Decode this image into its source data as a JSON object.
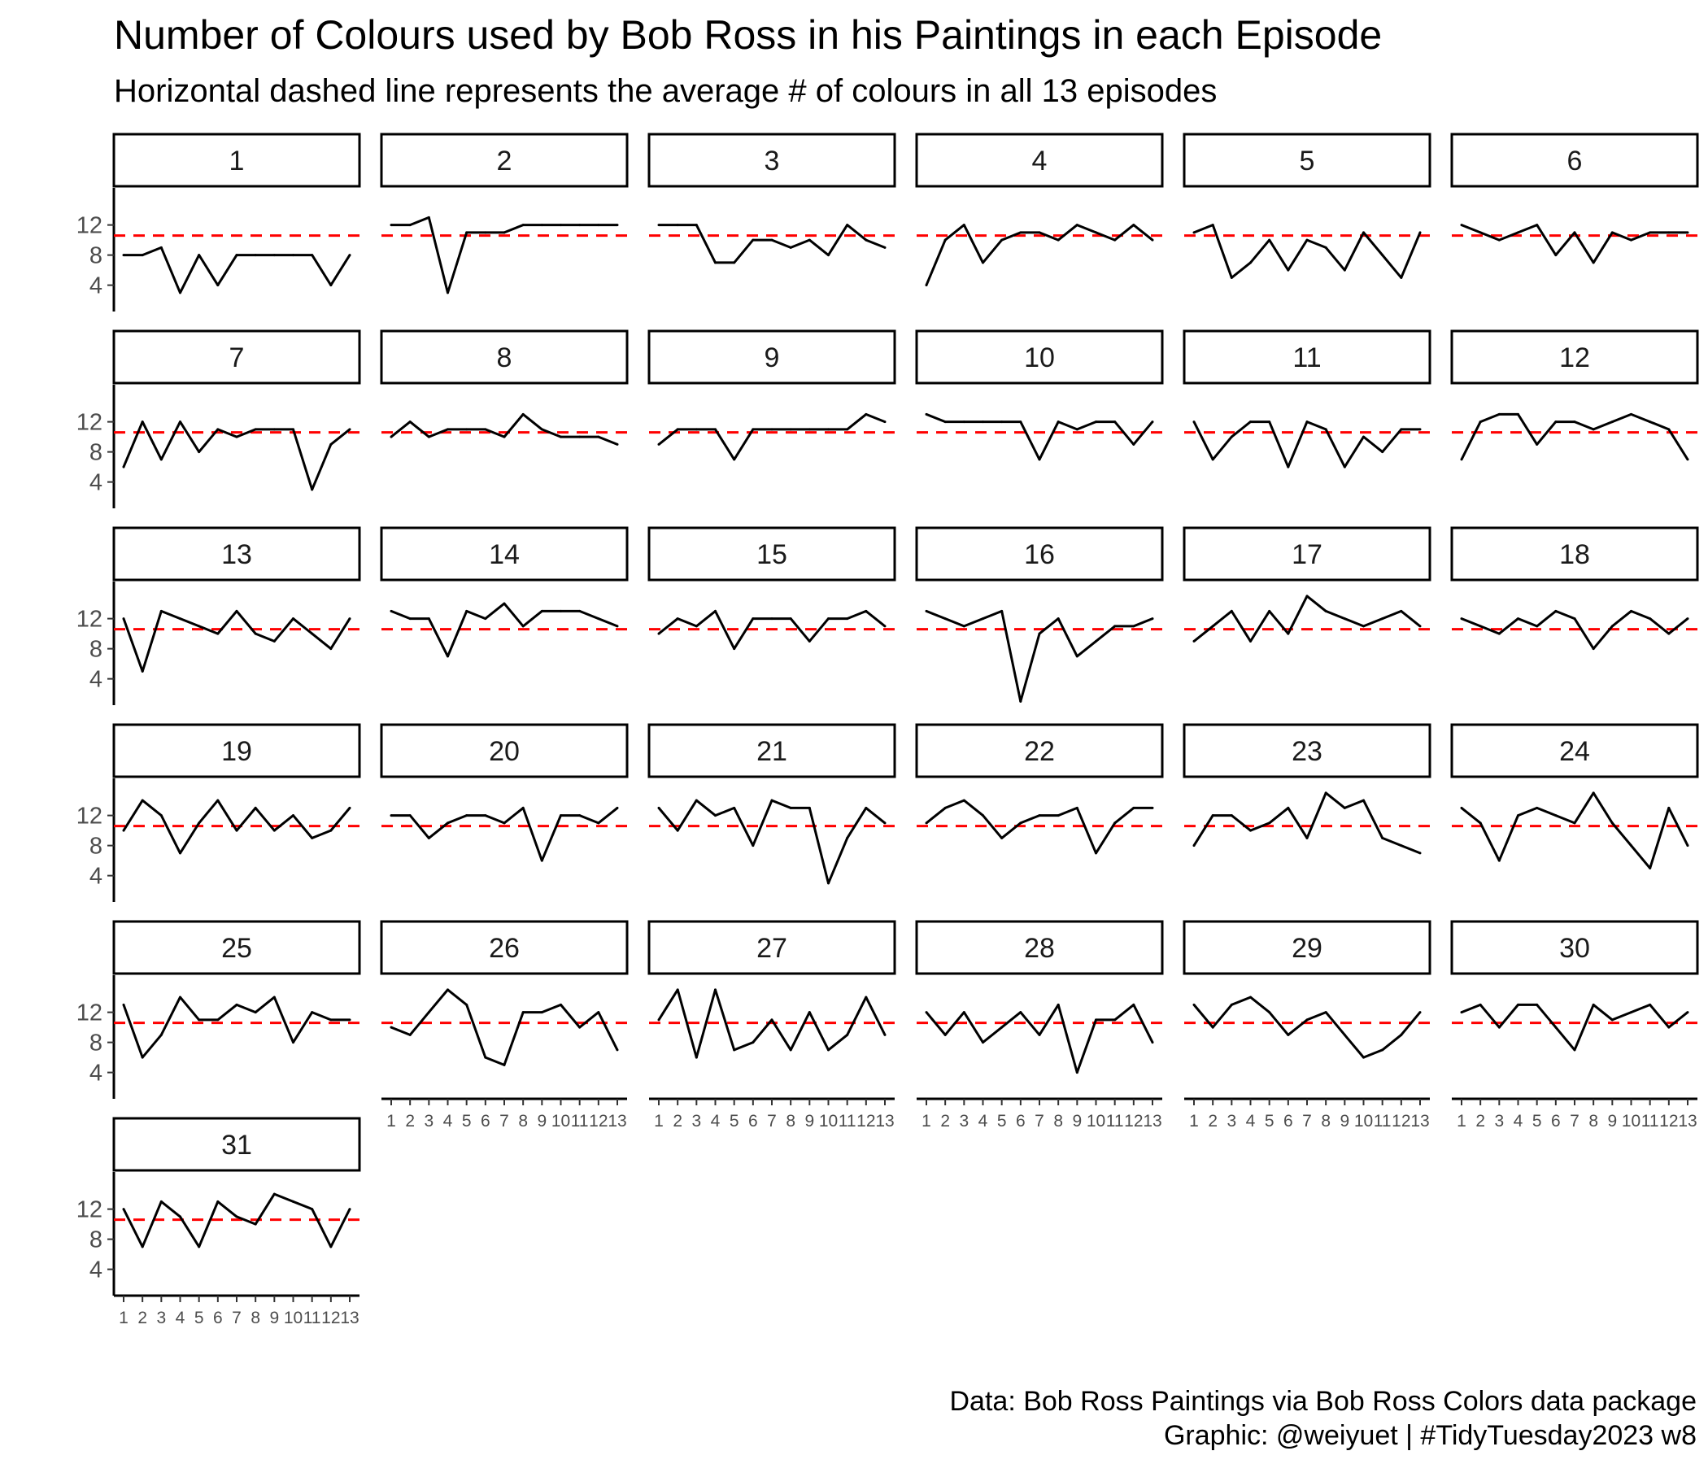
{
  "title": "Number of Colours used by Bob Ross in his Paintings in each Episode",
  "subtitle": "Horizontal dashed line represents the average # of colours in all 13 episodes",
  "caption": {
    "line1": "Data: Bob Ross Paintings via Bob Ross Colors data package",
    "line2": "Graphic: @weiyuet | #TidyTuesday2023 w8"
  },
  "colors": {
    "line": "#000000",
    "average_line": "#ff0000",
    "strip_border": "#000000"
  },
  "chart_data": {
    "type": "line",
    "facet_by": "season",
    "xlabel": "",
    "ylabel": "",
    "x": [
      1,
      2,
      3,
      4,
      5,
      6,
      7,
      8,
      9,
      10,
      11,
      12,
      13
    ],
    "x_tick_labels": [
      "1",
      "2",
      "3",
      "4",
      "5",
      "6",
      "7",
      "8",
      "9",
      "10",
      "11",
      "12",
      "13"
    ],
    "y_ticks": [
      4,
      8,
      12
    ],
    "ylim": [
      0.5,
      16.5
    ],
    "average": 10.6,
    "series": [
      {
        "name": "1",
        "values": [
          8,
          8,
          9,
          3,
          8,
          4,
          8,
          8,
          8,
          8,
          8,
          4,
          8
        ]
      },
      {
        "name": "2",
        "values": [
          12,
          12,
          13,
          3,
          11,
          11,
          11,
          12,
          12,
          12,
          12,
          12,
          12
        ]
      },
      {
        "name": "3",
        "values": [
          12,
          12,
          12,
          7,
          7,
          10,
          10,
          9,
          10,
          8,
          12,
          10,
          9
        ]
      },
      {
        "name": "4",
        "values": [
          4,
          10,
          12,
          7,
          10,
          11,
          11,
          10,
          12,
          11,
          10,
          12,
          10
        ]
      },
      {
        "name": "5",
        "values": [
          11,
          12,
          5,
          7,
          10,
          6,
          10,
          9,
          6,
          11,
          8,
          5,
          11
        ]
      },
      {
        "name": "6",
        "values": [
          12,
          11,
          10,
          11,
          12,
          8,
          11,
          7,
          11,
          10,
          11,
          11,
          11
        ]
      },
      {
        "name": "7",
        "values": [
          6,
          12,
          7,
          12,
          8,
          11,
          10,
          11,
          11,
          11,
          3,
          9,
          11
        ]
      },
      {
        "name": "8",
        "values": [
          10,
          12,
          10,
          11,
          11,
          11,
          10,
          13,
          11,
          10,
          10,
          10,
          9
        ]
      },
      {
        "name": "9",
        "values": [
          9,
          11,
          11,
          11,
          7,
          11,
          11,
          11,
          11,
          11,
          11,
          13,
          12
        ]
      },
      {
        "name": "10",
        "values": [
          13,
          12,
          12,
          12,
          12,
          12,
          7,
          12,
          11,
          12,
          12,
          9,
          12
        ]
      },
      {
        "name": "11",
        "values": [
          12,
          7,
          10,
          12,
          12,
          6,
          12,
          11,
          6,
          10,
          8,
          11,
          11
        ]
      },
      {
        "name": "12",
        "values": [
          7,
          12,
          13,
          13,
          9,
          12,
          12,
          11,
          12,
          13,
          12,
          11,
          7
        ]
      },
      {
        "name": "13",
        "values": [
          12,
          5,
          13,
          12,
          11,
          10,
          13,
          10,
          9,
          12,
          10,
          8,
          12
        ]
      },
      {
        "name": "14",
        "values": [
          13,
          12,
          12,
          7,
          13,
          12,
          14,
          11,
          13,
          13,
          13,
          12,
          11
        ]
      },
      {
        "name": "15",
        "values": [
          10,
          12,
          11,
          13,
          8,
          12,
          12,
          12,
          9,
          12,
          12,
          13,
          11
        ]
      },
      {
        "name": "16",
        "values": [
          13,
          12,
          11,
          12,
          13,
          1,
          10,
          12,
          7,
          9,
          11,
          11,
          12
        ]
      },
      {
        "name": "17",
        "values": [
          9,
          11,
          13,
          9,
          13,
          10,
          15,
          13,
          12,
          11,
          12,
          13,
          11
        ]
      },
      {
        "name": "18",
        "values": [
          12,
          11,
          10,
          12,
          11,
          13,
          12,
          8,
          11,
          13,
          12,
          10,
          12
        ]
      },
      {
        "name": "19",
        "values": [
          10,
          14,
          12,
          7,
          11,
          14,
          10,
          13,
          10,
          12,
          9,
          10,
          13
        ]
      },
      {
        "name": "20",
        "values": [
          12,
          12,
          9,
          11,
          12,
          12,
          11,
          13,
          6,
          12,
          12,
          11,
          13
        ]
      },
      {
        "name": "21",
        "values": [
          13,
          10,
          14,
          12,
          13,
          8,
          14,
          13,
          13,
          3,
          9,
          13,
          11
        ]
      },
      {
        "name": "22",
        "values": [
          11,
          13,
          14,
          12,
          9,
          11,
          12,
          12,
          13,
          7,
          11,
          13,
          13
        ]
      },
      {
        "name": "23",
        "values": [
          8,
          12,
          12,
          10,
          11,
          13,
          9,
          15,
          13,
          14,
          9,
          8,
          7
        ]
      },
      {
        "name": "24",
        "values": [
          13,
          11,
          6,
          12,
          13,
          12,
          11,
          15,
          11,
          8,
          5,
          13,
          8
        ]
      },
      {
        "name": "25",
        "values": [
          13,
          6,
          9,
          14,
          11,
          11,
          13,
          12,
          14,
          8,
          12,
          11,
          11
        ]
      },
      {
        "name": "26",
        "values": [
          10,
          9,
          12,
          15,
          13,
          6,
          5,
          12,
          12,
          13,
          10,
          12,
          7
        ]
      },
      {
        "name": "27",
        "values": [
          11,
          15,
          6,
          15,
          7,
          8,
          11,
          7,
          12,
          7,
          9,
          14,
          9
        ]
      },
      {
        "name": "28",
        "values": [
          12,
          9,
          12,
          8,
          10,
          12,
          9,
          13,
          4,
          11,
          11,
          13,
          8
        ]
      },
      {
        "name": "29",
        "values": [
          13,
          10,
          13,
          14,
          12,
          9,
          11,
          12,
          9,
          6,
          7,
          9,
          12
        ]
      },
      {
        "name": "30",
        "values": [
          12,
          13,
          10,
          13,
          13,
          10,
          7,
          13,
          11,
          12,
          13,
          10,
          12
        ]
      },
      {
        "name": "31",
        "values": [
          12,
          7,
          13,
          11,
          7,
          13,
          11,
          10,
          14,
          13,
          12,
          7,
          12
        ]
      }
    ]
  }
}
